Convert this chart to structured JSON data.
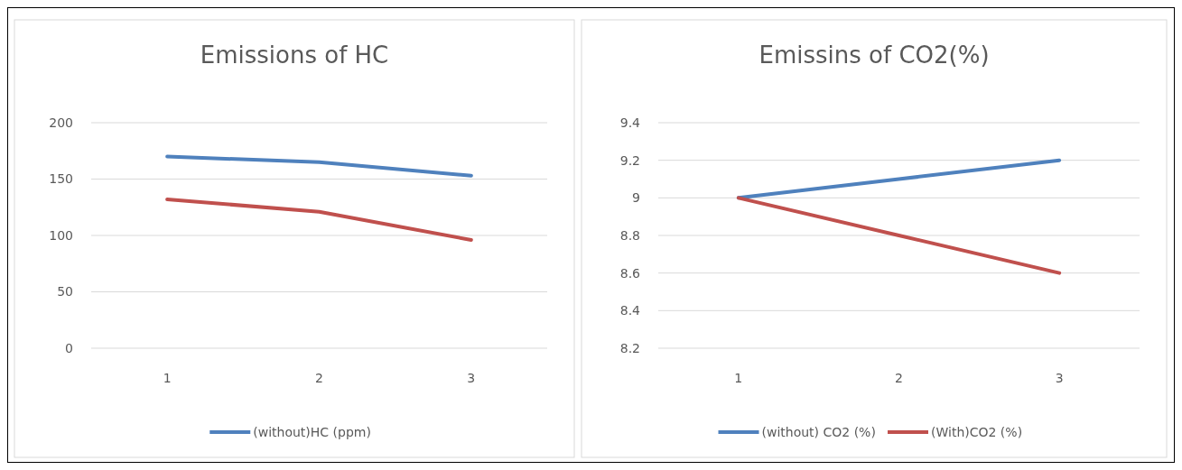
{
  "chart_data": [
    {
      "type": "line",
      "title": "Emissions of HC",
      "categories": [
        "1",
        "2",
        "3"
      ],
      "series": [
        {
          "name": "(without)HC (ppm)",
          "color": "#4f81bd",
          "values": [
            170,
            165,
            153
          ]
        },
        {
          "color": "#c0504d",
          "values": [
            132,
            121,
            96
          ]
        }
      ],
      "ylim": [
        0,
        200
      ],
      "yticks": [
        0,
        50,
        100,
        150,
        200
      ],
      "grid": "y",
      "legend": "bottom"
    },
    {
      "type": "line",
      "title": "Emissins of CO2(%)",
      "categories": [
        "1",
        "2",
        "3"
      ],
      "series": [
        {
          "name": "(without) CO2 (%)",
          "color": "#4f81bd",
          "values": [
            9,
            9.1,
            9.2
          ]
        },
        {
          "name": "(With)CO2 (%)",
          "color": "#c0504d",
          "values": [
            9,
            8.8,
            8.6
          ]
        }
      ],
      "ylim": [
        8.2,
        9.4
      ],
      "yticks": [
        8.2,
        8.4,
        8.6,
        8.8,
        9,
        9.2,
        9.4
      ],
      "grid": "y",
      "legend": "bottom"
    }
  ]
}
